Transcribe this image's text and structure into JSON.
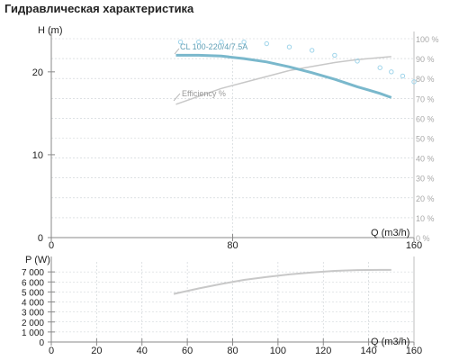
{
  "title": "Гидравлическая характеристика",
  "colors": {
    "curve": "#7ab8cc",
    "efficiency": "#c8c8c8",
    "dots": "#9ed4ea",
    "axis": "#888888",
    "grid": "#c9cfd3"
  },
  "chart_data": [
    {
      "type": "line",
      "xlabel": "Q (m3/h)",
      "ylabel": "H (m)",
      "xlim": [
        0,
        160
      ],
      "ylim": [
        0,
        24
      ],
      "x_ticks": [
        "0",
        "80",
        "160"
      ],
      "y_ticks": [
        "0",
        "10",
        "20"
      ],
      "y2_ticks": [
        "0 %",
        "10 %",
        "20 %",
        "30 %",
        "40 %",
        "50 %",
        "60 %",
        "70 %",
        "80 %",
        "90 %",
        "100 %"
      ],
      "y2lim": [
        0,
        100
      ],
      "series": [
        {
          "name": "CL 100-220/4/7.5A",
          "axis": "y",
          "x": [
            55,
            65,
            75,
            85,
            95,
            105,
            115,
            125,
            135,
            140,
            145,
            150
          ],
          "y": [
            22,
            22,
            21.9,
            21.6,
            21.2,
            20.6,
            19.9,
            19.1,
            18.2,
            17.8,
            17.4,
            16.9
          ]
        },
        {
          "name": "Efficiency %",
          "axis": "y2",
          "x": [
            55,
            65,
            75,
            85,
            95,
            105,
            115,
            125,
            135,
            145,
            150
          ],
          "y": [
            67,
            71,
            75,
            78,
            81,
            84,
            86,
            88,
            89.5,
            90.5,
            91
          ]
        },
        {
          "name": "",
          "axis": "y",
          "style": "dots",
          "x": [
            57,
            65,
            75,
            85,
            95,
            105,
            115,
            125,
            135,
            145,
            150,
            155,
            160
          ],
          "y": [
            23.6,
            23.6,
            23.6,
            23.6,
            23.4,
            23.0,
            22.6,
            22.0,
            21.3,
            20.5,
            20.0,
            19.5,
            18.8
          ]
        }
      ]
    },
    {
      "type": "line",
      "xlabel": "Q (m3/h)",
      "ylabel": "P (W)",
      "xlim": [
        0,
        160
      ],
      "ylim": [
        0,
        8000
      ],
      "x_ticks": [
        "0",
        "20",
        "40",
        "60",
        "80",
        "100",
        "120",
        "140",
        "160"
      ],
      "y_ticks": [
        "0",
        "1 000",
        "2 000",
        "3 000",
        "4 000",
        "5 000",
        "6 000",
        "7 000"
      ],
      "series": [
        {
          "name": "",
          "x": [
            54,
            65,
            75,
            85,
            95,
            105,
            115,
            125,
            135,
            145,
            150
          ],
          "y": [
            4800,
            5350,
            5800,
            6200,
            6500,
            6750,
            6950,
            7100,
            7180,
            7200,
            7200
          ]
        }
      ]
    }
  ]
}
